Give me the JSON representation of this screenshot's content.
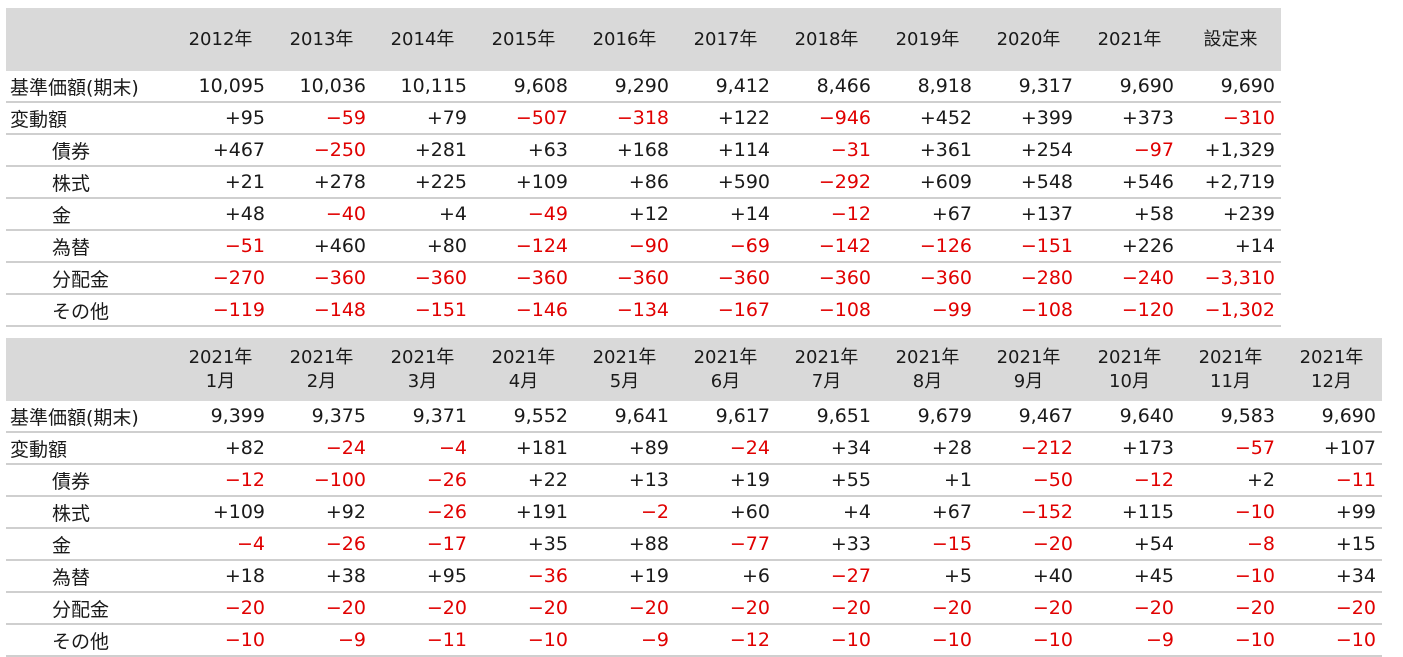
{
  "colors": {
    "header_bg": "#d9d9d9",
    "negative": "#e00000",
    "text": "#1a1a1a",
    "rule": "#cfcfcf"
  },
  "annual": {
    "columns": [
      "2012年",
      "2013年",
      "2014年",
      "2015年",
      "2016年",
      "2017年",
      "2018年",
      "2019年",
      "2020年",
      "2021年",
      "設定来"
    ],
    "rows": [
      {
        "label": "基準価額(期末)",
        "indent": false,
        "values": [
          "10,095",
          "10,036",
          "10,115",
          "9,608",
          "9,290",
          "9,412",
          "8,466",
          "8,918",
          "9,317",
          "9,690",
          "9,690"
        ]
      },
      {
        "label": "変動額",
        "indent": false,
        "values": [
          "+95",
          "−59",
          "+79",
          "−507",
          "−318",
          "+122",
          "−946",
          "+452",
          "+399",
          "+373",
          "−310"
        ]
      },
      {
        "label": "債券",
        "indent": true,
        "values": [
          "+467",
          "−250",
          "+281",
          "+63",
          "+168",
          "+114",
          "−31",
          "+361",
          "+254",
          "−97",
          "+1,329"
        ]
      },
      {
        "label": "株式",
        "indent": true,
        "values": [
          "+21",
          "+278",
          "+225",
          "+109",
          "+86",
          "+590",
          "−292",
          "+609",
          "+548",
          "+546",
          "+2,719"
        ]
      },
      {
        "label": "金",
        "indent": true,
        "values": [
          "+48",
          "−40",
          "+4",
          "−49",
          "+12",
          "+14",
          "−12",
          "+67",
          "+137",
          "+58",
          "+239"
        ]
      },
      {
        "label": "為替",
        "indent": true,
        "values": [
          "−51",
          "+460",
          "+80",
          "−124",
          "−90",
          "−69",
          "−142",
          "−126",
          "−151",
          "+226",
          "+14"
        ]
      },
      {
        "label": "分配金",
        "indent": true,
        "values": [
          "−270",
          "−360",
          "−360",
          "−360",
          "−360",
          "−360",
          "−360",
          "−360",
          "−280",
          "−240",
          "−3,310"
        ]
      },
      {
        "label": "その他",
        "indent": true,
        "values": [
          "−119",
          "−148",
          "−151",
          "−146",
          "−134",
          "−167",
          "−108",
          "−99",
          "−108",
          "−120",
          "−1,302"
        ]
      }
    ]
  },
  "monthly": {
    "columns": [
      "2021年\n1月",
      "2021年\n2月",
      "2021年\n3月",
      "2021年\n4月",
      "2021年\n5月",
      "2021年\n6月",
      "2021年\n7月",
      "2021年\n8月",
      "2021年\n9月",
      "2021年\n10月",
      "2021年\n11月",
      "2021年\n12月"
    ],
    "rows": [
      {
        "label": "基準価額(期末)",
        "indent": false,
        "values": [
          "9,399",
          "9,375",
          "9,371",
          "9,552",
          "9,641",
          "9,617",
          "9,651",
          "9,679",
          "9,467",
          "9,640",
          "9,583",
          "9,690"
        ]
      },
      {
        "label": "変動額",
        "indent": false,
        "values": [
          "+82",
          "−24",
          "−4",
          "+181",
          "+89",
          "−24",
          "+34",
          "+28",
          "−212",
          "+173",
          "−57",
          "+107"
        ]
      },
      {
        "label": "債券",
        "indent": true,
        "values": [
          "−12",
          "−100",
          "−26",
          "+22",
          "+13",
          "+19",
          "+55",
          "+1",
          "−50",
          "−12",
          "+2",
          "−11"
        ]
      },
      {
        "label": "株式",
        "indent": true,
        "values": [
          "+109",
          "+92",
          "−26",
          "+191",
          "−2",
          "+60",
          "+4",
          "+67",
          "−152",
          "+115",
          "−10",
          "+99"
        ]
      },
      {
        "label": "金",
        "indent": true,
        "values": [
          "−4",
          "−26",
          "−17",
          "+35",
          "+88",
          "−77",
          "+33",
          "−15",
          "−20",
          "+54",
          "−8",
          "+15"
        ]
      },
      {
        "label": "為替",
        "indent": true,
        "values": [
          "+18",
          "+38",
          "+95",
          "−36",
          "+19",
          "+6",
          "−27",
          "+5",
          "+40",
          "+45",
          "−10",
          "+34"
        ]
      },
      {
        "label": "分配金",
        "indent": true,
        "values": [
          "−20",
          "−20",
          "−20",
          "−20",
          "−20",
          "−20",
          "−20",
          "−20",
          "−20",
          "−20",
          "−20",
          "−20"
        ]
      },
      {
        "label": "その他",
        "indent": true,
        "values": [
          "−10",
          "−9",
          "−11",
          "−10",
          "−9",
          "−12",
          "−10",
          "−10",
          "−10",
          "−9",
          "−10",
          "−10"
        ]
      }
    ]
  }
}
